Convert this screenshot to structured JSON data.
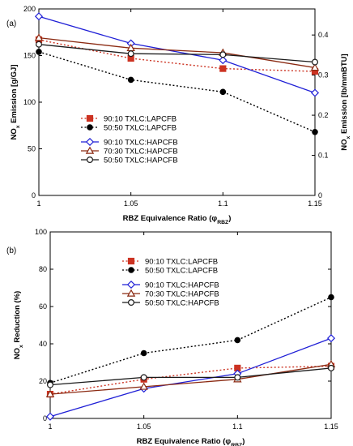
{
  "colors": {
    "txlc9010_lap": "#cc3322",
    "txlc5050_lap": "#000000",
    "txlc9010_hap": "#1f1fd6",
    "txlc7030_hap": "#8b2a12",
    "txlc5050_hap": "#1a1a1a",
    "axis": "#000000"
  },
  "chart_data": [
    {
      "panel_label": "(a)",
      "type": "line",
      "xlabel": "RBZ Equivalence Ratio (φ",
      "xlabel_sub": "RBZ",
      "xlabel_tail": ")",
      "ylabel": "NO",
      "ylabel_sub": "x",
      "ylabel_tail": " Emission [g/GJ]",
      "y2label": "NO",
      "y2label_sub": "x",
      "y2label_tail": " Emission [lb/mmBTU]",
      "x_ticks": [
        "1",
        "1.05",
        "1.1",
        "1.15"
      ],
      "y_ticks": [
        "0",
        "50",
        "100",
        "150",
        "200"
      ],
      "y2_ticks": [
        "0",
        "0.1",
        "0.2",
        "0.3",
        "0.4"
      ],
      "xlim": [
        1,
        1.15
      ],
      "ylim": [
        0,
        200
      ],
      "y2lim": [
        0,
        0.465
      ],
      "grid": false,
      "legend_position": "center-left",
      "series": [
        {
          "name": "90:10 TXLC:LAPCFB",
          "key": "txlc9010_lap",
          "marker": "square",
          "dash": "dotted",
          "x": [
            1,
            1.05,
            1.1,
            1.15
          ],
          "y": [
            167,
            147,
            136,
            133
          ]
        },
        {
          "name": "50:50 TXLC:LAPCFB",
          "key": "txlc5050_lap",
          "marker": "circle-filled",
          "dash": "dotted",
          "x": [
            1,
            1.05,
            1.1,
            1.15
          ],
          "y": [
            154,
            124,
            111,
            68
          ]
        },
        {
          "name": "90:10 TXLC:HAPCFB",
          "key": "txlc9010_hap",
          "marker": "diamond-open",
          "dash": "solid",
          "x": [
            1,
            1.05,
            1.1,
            1.15
          ],
          "y": [
            192,
            163,
            145,
            110
          ]
        },
        {
          "name": "70:30 TXLC:HAPCFB",
          "key": "txlc7030_hap",
          "marker": "triangle-open",
          "dash": "solid",
          "x": [
            1,
            1.05,
            1.1,
            1.15
          ],
          "y": [
            169,
            158,
            153,
            137
          ]
        },
        {
          "name": "50:50 TXLC:HAPCFB",
          "key": "txlc5050_hap",
          "marker": "circle-open",
          "dash": "solid",
          "x": [
            1,
            1.05,
            1.1,
            1.15
          ],
          "y": [
            162,
            152,
            151,
            143
          ]
        }
      ]
    },
    {
      "panel_label": "(b)",
      "type": "line",
      "xlabel": "RBZ Equivalence Ratio (φ",
      "xlabel_sub": "RBZ",
      "xlabel_tail": ")",
      "ylabel": "NO",
      "ylabel_sub": "x",
      "ylabel_tail": " Reduction (%)",
      "x_ticks": [
        "1",
        "1.05",
        "1.1",
        "1.15"
      ],
      "y_ticks": [
        "0",
        "20",
        "40",
        "60",
        "80",
        "100"
      ],
      "xlim": [
        1,
        1.15
      ],
      "ylim": [
        0,
        100
      ],
      "grid": false,
      "legend_position": "top-left",
      "series": [
        {
          "name": "90:10 TXLC:LAPCFB",
          "key": "txlc9010_lap",
          "marker": "square",
          "dash": "dotted",
          "x": [
            1,
            1.05,
            1.1,
            1.15
          ],
          "y": [
            13,
            21,
            27,
            28
          ]
        },
        {
          "name": "50:50 TXLC:LAPCFB",
          "key": "txlc5050_lap",
          "marker": "circle-filled",
          "dash": "dotted",
          "x": [
            1,
            1.05,
            1.1,
            1.15
          ],
          "y": [
            19,
            35,
            42,
            65
          ]
        },
        {
          "name": "90:10 TXLC:HAPCFB",
          "key": "txlc9010_hap",
          "marker": "diamond-open",
          "dash": "solid",
          "x": [
            1,
            1.05,
            1.1,
            1.15
          ],
          "y": [
            1,
            16,
            24,
            43
          ]
        },
        {
          "name": "70:30 TXLC:HAPCFB",
          "key": "txlc7030_hap",
          "marker": "triangle-open",
          "dash": "solid",
          "x": [
            1,
            1.05,
            1.1,
            1.15
          ],
          "y": [
            13,
            17,
            21,
            29
          ]
        },
        {
          "name": "50:50 TXLC:HAPCFB",
          "key": "txlc5050_hap",
          "marker": "circle-open",
          "dash": "solid",
          "x": [
            1,
            1.05,
            1.1,
            1.15
          ],
          "y": [
            18,
            22,
            22,
            27
          ]
        }
      ]
    }
  ]
}
